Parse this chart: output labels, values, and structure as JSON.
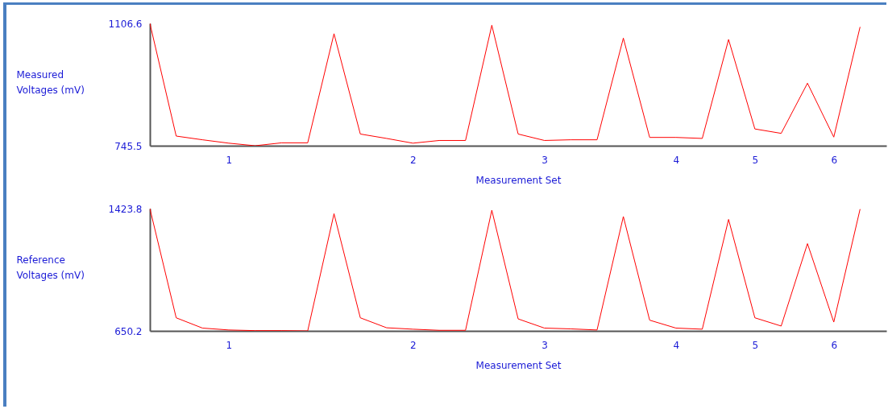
{
  "chart_data": [
    {
      "type": "line",
      "ylabel": "Measured Voltages (mV)",
      "xlabel": "Measurement Set",
      "categories": [
        null,
        null,
        null,
        "1",
        null,
        null,
        null,
        null,
        null,
        null,
        "2",
        null,
        null,
        null,
        null,
        "3",
        null,
        null,
        null,
        null,
        "4",
        null,
        null,
        "5",
        null,
        null,
        "6",
        null
      ],
      "series": [
        {
          "color": "#ff0000",
          "values": [
            1106.6,
            774,
            763,
            753,
            745.5,
            754,
            754,
            1076,
            780,
            767,
            753,
            761,
            761,
            1101,
            780,
            761,
            763,
            763,
            1063,
            770,
            770,
            767,
            1059,
            795,
            782,
            930,
            771,
            1096
          ]
        }
      ],
      "ylim": [
        745.5,
        1106.6
      ],
      "yticks": [
        745.5,
        1106.6
      ],
      "line_style": "solid"
    },
    {
      "type": "line",
      "ylabel": "Reference Voltages (mV)",
      "xlabel": "Measurement Set",
      "categories": [
        null,
        null,
        null,
        "1",
        null,
        null,
        null,
        null,
        null,
        null,
        "2",
        null,
        null,
        null,
        null,
        "3",
        null,
        null,
        null,
        null,
        "4",
        null,
        null,
        "5",
        null,
        null,
        "6",
        null
      ],
      "series": [
        {
          "color": "#ff0000",
          "values": [
            1423.8,
            733,
            668,
            656,
            652,
            652,
            650.2,
            1391,
            733,
            670,
            661,
            654,
            654,
            1413,
            726,
            668,
            663,
            656,
            1373,
            718,
            668,
            661,
            1355,
            733,
            681,
            1202,
            706,
            1420
          ]
        }
      ],
      "ylim": [
        650.2,
        1423.8
      ],
      "yticks": [
        650.2,
        1423.8
      ],
      "line_style": "solid"
    }
  ]
}
